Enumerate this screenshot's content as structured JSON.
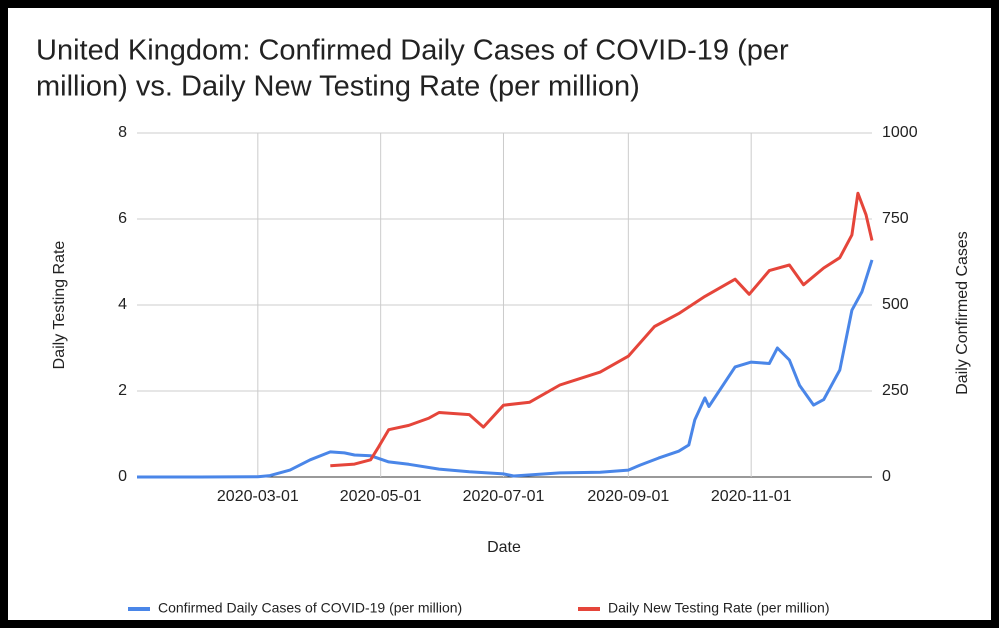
{
  "chart_data": {
    "type": "line",
    "title": [
      "United Kingdom: Confirmed Daily Cases of COVID-19 (per",
      "million) vs. Daily New Testing Rate (per million)"
    ],
    "xlabel": "Date",
    "ylabel": "Daily Testing Rate",
    "y2label": "Daily Confirmed Cases",
    "xlim": [
      "2020-01-01",
      "2020-12-31"
    ],
    "xticks": [
      "2020-03-01",
      "2020-05-01",
      "2020-07-01",
      "2020-09-01",
      "2020-11-01"
    ],
    "ylim": [
      0,
      8
    ],
    "yticks": [
      0,
      2,
      4,
      6,
      8
    ],
    "y2lim": [
      0,
      1000
    ],
    "y2ticks": [
      0,
      250,
      500,
      750,
      1000
    ],
    "grid": true,
    "legend": "bottom",
    "series": [
      {
        "name": "Confirmed Daily Cases of COVID-19 (per million)",
        "color": "#4a86e8",
        "axis": "y2",
        "x": [
          "2020-01-01",
          "2020-02-01",
          "2020-03-01",
          "2020-03-07",
          "2020-03-17",
          "2020-03-27",
          "2020-04-06",
          "2020-04-13",
          "2020-04-18",
          "2020-04-26",
          "2020-05-05",
          "2020-05-15",
          "2020-05-30",
          "2020-06-14",
          "2020-07-01",
          "2020-07-06",
          "2020-07-29",
          "2020-08-18",
          "2020-09-01",
          "2020-09-07",
          "2020-09-16",
          "2020-09-26",
          "2020-10-01",
          "2020-10-04",
          "2020-10-09",
          "2020-10-11",
          "2020-10-24",
          "2020-11-01",
          "2020-11-10",
          "2020-11-14",
          "2020-11-20",
          "2020-11-25",
          "2020-12-02",
          "2020-12-07",
          "2020-12-15",
          "2020-12-21",
          "2020-12-26",
          "2020-12-31"
        ],
        "values": [
          0,
          0,
          1,
          4,
          20,
          50,
          73,
          70,
          64,
          62,
          44,
          37,
          23,
          15,
          9,
          3,
          12,
          14,
          20,
          35,
          55,
          75,
          93,
          166,
          230,
          205,
          320,
          334,
          330,
          375,
          340,
          267,
          209,
          225,
          311,
          485,
          538,
          631
        ]
      },
      {
        "name": "Daily New Testing Rate (per million)",
        "color": "#e5453a",
        "axis": "y",
        "x": [
          "2020-04-06",
          "2020-04-18",
          "2020-04-26",
          "2020-04-30",
          "2020-05-05",
          "2020-05-15",
          "2020-05-25",
          "2020-05-30",
          "2020-06-14",
          "2020-06-21",
          "2020-07-01",
          "2020-07-14",
          "2020-07-29",
          "2020-08-18",
          "2020-09-01",
          "2020-09-14",
          "2020-09-26",
          "2020-10-09",
          "2020-10-24",
          "2020-10-31",
          "2020-11-10",
          "2020-11-20",
          "2020-11-27",
          "2020-12-07",
          "2020-12-15",
          "2020-12-21",
          "2020-12-24",
          "2020-12-28",
          "2020-12-31"
        ],
        "values": [
          0.26,
          0.3,
          0.4,
          0.7,
          1.1,
          1.2,
          1.37,
          1.5,
          1.45,
          1.16,
          1.67,
          1.74,
          2.14,
          2.44,
          2.81,
          3.5,
          3.8,
          4.2,
          4.6,
          4.25,
          4.8,
          4.93,
          4.47,
          4.86,
          5.1,
          5.63,
          6.6,
          6.1,
          5.5
        ]
      }
    ]
  }
}
